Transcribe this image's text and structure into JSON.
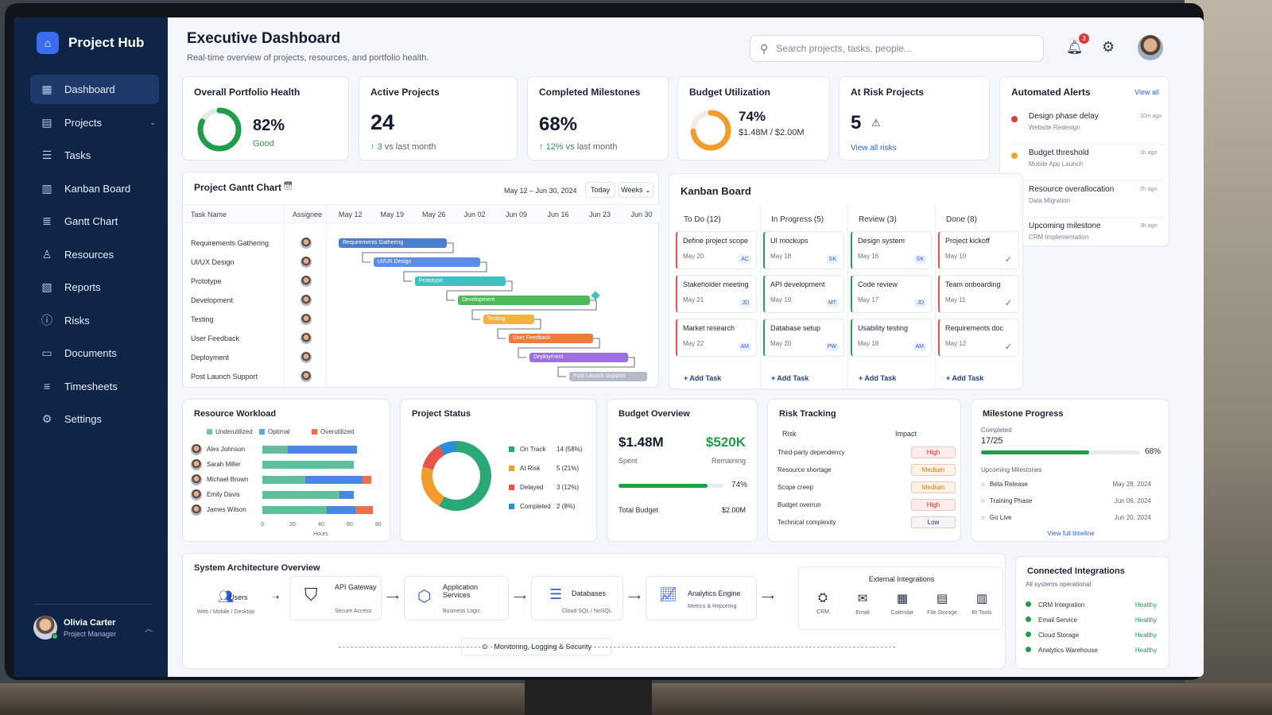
{
  "app": {
    "name": "Project Hub"
  },
  "sidebar": {
    "items": [
      {
        "label": "Dashboard",
        "icon": "dashboard-icon"
      },
      {
        "label": "Projects",
        "icon": "folder-icon"
      },
      {
        "label": "Tasks",
        "icon": "tasks-icon"
      },
      {
        "label": "Kanban Board",
        "icon": "kanban-icon"
      },
      {
        "label": "Gantt Chart",
        "icon": "gantt-icon"
      },
      {
        "label": "Resources",
        "icon": "users-icon"
      },
      {
        "label": "Reports",
        "icon": "reports-icon"
      },
      {
        "label": "Risks",
        "icon": "warning-icon"
      },
      {
        "label": "Documents",
        "icon": "document-icon"
      },
      {
        "label": "Timesheets",
        "icon": "timesheet-icon"
      },
      {
        "label": "Settings",
        "icon": "gear-icon"
      }
    ],
    "user": {
      "name": "Olivia Carter",
      "role": "Project Manager"
    }
  },
  "header": {
    "title": "Executive Dashboard",
    "subtitle": "Real-time overview of projects, resources, and portfolio health.",
    "search_placeholder": "Search projects, tasks, people...",
    "notification_count": "3"
  },
  "kpis": {
    "health": {
      "title": "Overall Portfolio Health",
      "value": "82%",
      "status": "Good",
      "fraction": 0.82
    },
    "active": {
      "title": "Active Projects",
      "value": "24",
      "delta": "3",
      "delta_text": "vs last month"
    },
    "milestones": {
      "title": "Completed Milestones",
      "value": "68%",
      "delta": "12%",
      "delta_text": "vs last month"
    },
    "budget": {
      "title": "Budget Utilization",
      "value": "74%",
      "detail": "$1.48M / $2.00M",
      "fraction": 0.74
    },
    "risk": {
      "title": "At Risk Projects",
      "value": "5",
      "link": "View all risks"
    }
  },
  "gantt": {
    "title": "Project Gantt Chart",
    "range": "May 12 – Jun 30, 2024",
    "today": "Today",
    "scale": "Weeks",
    "col_task": "Task Name",
    "col_assignee": "Assignee",
    "weeks": [
      "May 12",
      "May 19",
      "May 26",
      "Jun 02",
      "Jun 09",
      "Jun 16",
      "Jun 23",
      "Jun 30"
    ],
    "tasks": [
      {
        "name": "Requirements Gathering",
        "bar": "Requirements Gathering",
        "color": "#4a7fd0"
      },
      {
        "name": "UI/UX Design",
        "bar": "UI/UX Design",
        "color": "#5b8fe6"
      },
      {
        "name": "Prototype",
        "bar": "Prototype",
        "color": "#3cc2c0"
      },
      {
        "name": "Development",
        "bar": "Development",
        "color": "#4fb85c"
      },
      {
        "name": "Testing",
        "bar": "Testing",
        "color": "#f2b33d"
      },
      {
        "name": "User Feedback",
        "bar": "User Feedback",
        "color": "#f07c3a"
      },
      {
        "name": "Deployment",
        "bar": "Deployment",
        "color": "#9b6fe0"
      },
      {
        "name": "Post Launch Support",
        "bar": "Post Launch Support",
        "color": "#b6bac6"
      }
    ]
  },
  "kanban": {
    "title": "Kanban Board",
    "add_label": "+ Add Task",
    "columns": [
      {
        "title": "To Do (12)",
        "accent": "#e5534b",
        "cards": [
          {
            "title": "Define project scope",
            "date": "May 20",
            "tag": "AC"
          },
          {
            "title": "Stakeholder meeting",
            "date": "May 21",
            "tag": "JD"
          },
          {
            "title": "Market research",
            "date": "May 22",
            "tag": "AM"
          }
        ]
      },
      {
        "title": "In Progress (5)",
        "accent": "#27a05a",
        "cards": [
          {
            "title": "UI mockups",
            "date": "May 18",
            "tag": "SK"
          },
          {
            "title": "API development",
            "date": "May 19",
            "tag": "MT"
          },
          {
            "title": "Database setup",
            "date": "May 20",
            "tag": "PW"
          }
        ]
      },
      {
        "title": "Review (3)",
        "accent": "#27a05a",
        "cards": [
          {
            "title": "Design system",
            "date": "May 16",
            "tag": "SK"
          },
          {
            "title": "Code review",
            "date": "May 17",
            "tag": "JD"
          },
          {
            "title": "Usability testing",
            "date": "May 18",
            "tag": "AM"
          }
        ]
      },
      {
        "title": "Done (8)",
        "accent": "#e5534b",
        "cards": [
          {
            "title": "Project kickoff",
            "date": "May 10"
          },
          {
            "title": "Team onboarding",
            "date": "May 11"
          },
          {
            "title": "Requirements doc",
            "date": "May 12"
          }
        ]
      }
    ]
  },
  "alerts": {
    "title": "Automated Alerts",
    "view_all": "View all",
    "items": [
      {
        "title": "Design phase delay",
        "sub": "Website Redesign",
        "time": "10m ago",
        "color": "#e53935"
      },
      {
        "title": "Budget threshold",
        "sub": "Mobile App Launch",
        "time": "1h ago",
        "color": "#f5a524"
      },
      {
        "title": "Resource overallocation",
        "sub": "Data Migration",
        "time": "2h ago",
        "color": "#e53935"
      },
      {
        "title": "Upcoming milestone",
        "sub": "CRM Implementation",
        "time": "3h ago",
        "color": "#2563eb"
      }
    ]
  },
  "workload": {
    "title": "Resource Workload",
    "legend": [
      "Underutilized",
      "Optimal",
      "Overutilized"
    ],
    "people": [
      {
        "name": "Alex Johnson",
        "under": 0,
        "optimal": 18,
        "over": 0,
        "blue": 48
      },
      {
        "name": "Sarah Miller",
        "under": 0,
        "optimal": 64,
        "over": 0,
        "blue": 0
      },
      {
        "name": "Michael Brown",
        "under": 0,
        "optimal": 30,
        "over": 6,
        "blue": 40
      },
      {
        "name": "Emily Davis",
        "under": 0,
        "optimal": 54,
        "over": 0,
        "blue": 10
      },
      {
        "name": "James Wilson",
        "under": 0,
        "optimal": 45,
        "over": 12,
        "blue": 20
      }
    ],
    "ticks": [
      "0",
      "20",
      "40",
      "60",
      "80"
    ],
    "xlabel": "Hours"
  },
  "status": {
    "title": "Project Status",
    "items": [
      {
        "label": "On Track",
        "value": "14 (58%)",
        "n": 14,
        "color": "#2aa876"
      },
      {
        "label": "At Risk",
        "value": "5 (21%)",
        "n": 5,
        "color": "#f39c2b"
      },
      {
        "label": "Delayed",
        "value": "3 (12%)",
        "n": 3,
        "color": "#e5534b"
      },
      {
        "label": "Completed",
        "value": "2 (8%)",
        "n": 2,
        "color": "#2b8fd6"
      }
    ]
  },
  "budget": {
    "title": "Budget Overview",
    "spent": "$1.48M",
    "spent_label": "Spent",
    "remaining": "$520K",
    "remaining_label": "Remaining",
    "pct": "74%",
    "fraction": 0.74,
    "total_label": "Total Budget",
    "total": "$2.00M"
  },
  "risks": {
    "title": "Risk Tracking",
    "col_risk": "Risk",
    "col_impact": "Impact",
    "items": [
      {
        "name": "Third-party dependency",
        "impact": "High"
      },
      {
        "name": "Resource shortage",
        "impact": "Medium"
      },
      {
        "name": "Scope creep",
        "impact": "Medium"
      },
      {
        "name": "Budget overrun",
        "impact": "High"
      },
      {
        "name": "Technical complexity",
        "impact": "Low"
      }
    ]
  },
  "milestones": {
    "title": "Milestone Progress",
    "completed_label": "Completed",
    "completed": "17/25",
    "pct": "68%",
    "fraction": 0.68,
    "upcoming_label": "Upcoming Milestones",
    "items": [
      {
        "name": "Beta Release",
        "date": "May 28, 2024"
      },
      {
        "name": "Training Phase",
        "date": "Jun 06, 2024"
      },
      {
        "name": "Go Live",
        "date": "Jun 20, 2024"
      }
    ],
    "link": "View full timeline"
  },
  "architecture": {
    "title": "System Architecture Overview",
    "users": {
      "title": "Users",
      "sub": "Web / Mobile / Desktop"
    },
    "gateway": {
      "title": "API Gateway",
      "sub": "Secure Access"
    },
    "app": {
      "title": "Application Services",
      "sub": "Business Logic"
    },
    "db": {
      "title": "Databases",
      "sub": "Cloud SQL / NoSQL"
    },
    "analytics": {
      "title": "Analytics Engine",
      "sub": "Metrics & Reporting"
    },
    "external": {
      "title": "External Integrations",
      "items": [
        "CRM",
        "Email",
        "Calendar",
        "File Storage",
        "BI Tools"
      ]
    },
    "monitoring": "Monitoring, Logging & Security"
  },
  "integrations": {
    "title": "Connected Integrations",
    "sub": "All systems operational",
    "items": [
      {
        "name": "CRM Integration",
        "status": "Healthy"
      },
      {
        "name": "Email Service",
        "status": "Healthy"
      },
      {
        "name": "Cloud Storage",
        "status": "Healthy"
      },
      {
        "name": "Analytics Warehouse",
        "status": "Healthy"
      }
    ]
  }
}
